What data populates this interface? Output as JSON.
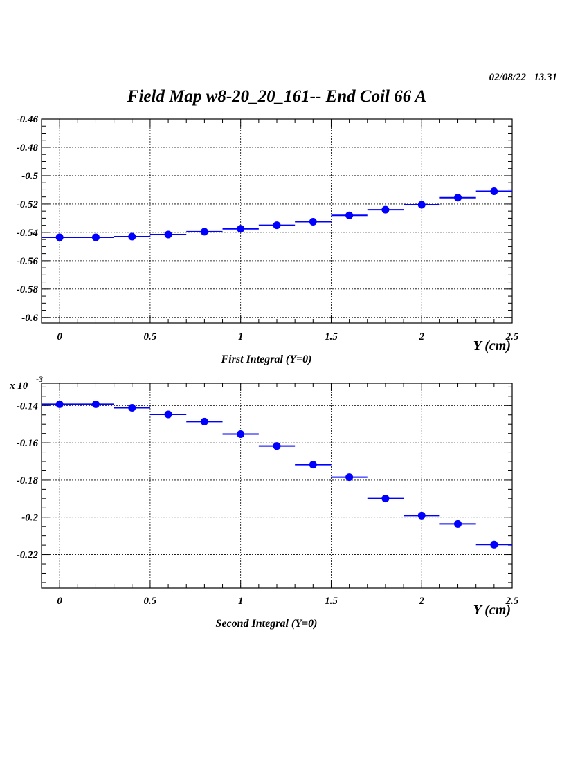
{
  "header": {
    "date": "02/08/22",
    "time": "13.31",
    "title": "Field Map w8-20_20_161-- End Coil 66 A"
  },
  "chart_data": [
    {
      "type": "scatter",
      "title": "First Integral (Y=0)",
      "xlabel": "Y (cm)",
      "ylabel": "",
      "multiplier_label": "",
      "xlim": [
        -0.1,
        2.5
      ],
      "ylim": [
        -0.604,
        -0.46
      ],
      "x_ticks": [
        0,
        0.5,
        1,
        1.5,
        2,
        2.5
      ],
      "x_tick_labels": [
        "0",
        "0.5",
        "1",
        "1.5",
        "2",
        "2.5"
      ],
      "y_ticks": [
        -0.6,
        -0.58,
        -0.56,
        -0.54,
        -0.52,
        -0.5,
        -0.48,
        -0.46
      ],
      "y_tick_labels": [
        "-0.6",
        "-0.58",
        "-0.56",
        "-0.54",
        "-0.52",
        "-0.5",
        "-0.48",
        "-0.46"
      ],
      "grid": true,
      "marker_color": "#0000ff",
      "x_error": 0.1,
      "x": [
        0,
        0.2,
        0.4,
        0.6,
        0.8,
        1.0,
        1.2,
        1.4,
        1.6,
        1.8,
        2.0,
        2.2,
        2.4
      ],
      "y": [
        -0.5435,
        -0.5435,
        -0.543,
        -0.5415,
        -0.5395,
        -0.5375,
        -0.535,
        -0.5325,
        -0.528,
        -0.524,
        -0.5205,
        -0.5155,
        -0.511
      ]
    },
    {
      "type": "scatter",
      "title": "Second Integral (Y=0)",
      "xlabel": "Y (cm)",
      "ylabel": "",
      "multiplier_label": "x 10",
      "multiplier_exp": "-3",
      "xlim": [
        -0.1,
        2.5
      ],
      "ylim": [
        -0.238,
        -0.128
      ],
      "x_ticks": [
        0,
        0.5,
        1,
        1.5,
        2,
        2.5
      ],
      "x_tick_labels": [
        "0",
        "0.5",
        "1",
        "1.5",
        "2",
        "2.5"
      ],
      "y_ticks": [
        -0.22,
        -0.2,
        -0.18,
        -0.16,
        -0.14
      ],
      "y_tick_labels": [
        "-0.22",
        "-0.2",
        "-0.18",
        "-0.16",
        "-0.14"
      ],
      "grid": true,
      "marker_color": "#0000ff",
      "x_error": 0.1,
      "x": [
        0,
        0.2,
        0.4,
        0.6,
        0.8,
        1.0,
        1.2,
        1.4,
        1.6,
        1.8,
        2.0,
        2.2,
        2.4
      ],
      "y": [
        -0.1393,
        -0.1393,
        -0.1412,
        -0.1447,
        -0.1486,
        -0.1553,
        -0.1617,
        -0.1717,
        -0.1784,
        -0.1899,
        -0.1991,
        -0.2036,
        -0.2147
      ]
    }
  ]
}
